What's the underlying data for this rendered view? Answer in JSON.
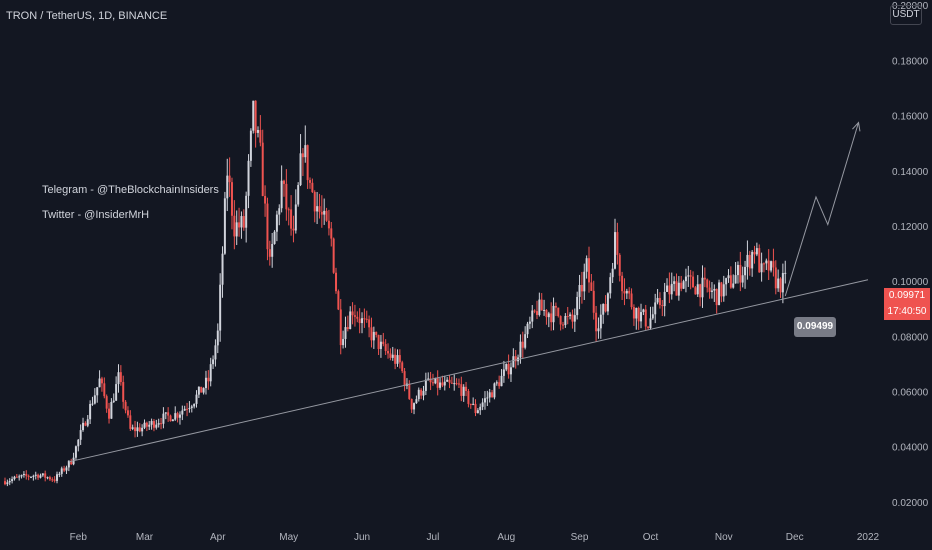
{
  "header": {
    "title": "TRON / TetherUS, 1D, BINANCE"
  },
  "annotations": {
    "telegram": "Telegram - @TheBlockchainInsiders",
    "twitter": "Twitter - @InsiderMrH"
  },
  "price_axis": {
    "currency": "USDT"
  },
  "last_price": {
    "value": "0.09971",
    "countdown": "17:40:50"
  },
  "target_label": "0.09499",
  "colors": {
    "background": "#131722",
    "up": "#d1d4dc",
    "down": "#ef5350",
    "trendline": "#9598a1",
    "axis_text": "#b2b5be"
  },
  "chart_data": {
    "type": "candlestick",
    "title": "TRON / TetherUS, 1D, BINANCE",
    "x_ticks": [
      "Feb",
      "Mar",
      "Apr",
      "May",
      "Jun",
      "Jul",
      "Aug",
      "Sep",
      "Oct",
      "Nov",
      "Dec",
      "2022"
    ],
    "y_ticks": [
      "0.02000",
      "0.04000",
      "0.06000",
      "0.08000",
      "0.10000",
      "0.12000",
      "0.14000",
      "0.16000",
      "0.18000",
      "0.20000"
    ],
    "ylim": [
      0.0116,
      0.2019
    ],
    "xlim": [
      "2021-01-01",
      "2022-01-01"
    ],
    "grid": false,
    "trendline": {
      "from": [
        "2021-01-28",
        0.0345
      ],
      "to": [
        "2022-01-01",
        0.1005
      ]
    },
    "projection": [
      [
        "2021-11-27",
        0.0946
      ],
      [
        "2021-12-10",
        0.1305
      ],
      [
        "2021-12-15",
        0.1205
      ],
      [
        "2021-12-28",
        0.1575
      ]
    ],
    "closes": [
      [
        "2021-01-01",
        0.0275
      ],
      [
        "2021-01-08",
        0.029
      ],
      [
        "2021-01-15",
        0.0298
      ],
      [
        "2021-01-22",
        0.0282
      ],
      [
        "2021-01-29",
        0.0348
      ],
      [
        "2021-02-05",
        0.052
      ],
      [
        "2021-02-10",
        0.064
      ],
      [
        "2021-02-14",
        0.052
      ],
      [
        "2021-02-18",
        0.065
      ],
      [
        "2021-02-23",
        0.046
      ],
      [
        "2021-03-01",
        0.047
      ],
      [
        "2021-03-08",
        0.05
      ],
      [
        "2021-03-15",
        0.052
      ],
      [
        "2021-03-22",
        0.057
      ],
      [
        "2021-03-28",
        0.064
      ],
      [
        "2021-04-01",
        0.081
      ],
      [
        "2021-04-05",
        0.14
      ],
      [
        "2021-04-08",
        0.12
      ],
      [
        "2021-04-12",
        0.12
      ],
      [
        "2021-04-16",
        0.16
      ],
      [
        "2021-04-19",
        0.145
      ],
      [
        "2021-04-23",
        0.105
      ],
      [
        "2021-04-28",
        0.135
      ],
      [
        "2021-05-03",
        0.115
      ],
      [
        "2021-05-07",
        0.15
      ],
      [
        "2021-05-10",
        0.135
      ],
      [
        "2021-05-14",
        0.125
      ],
      [
        "2021-05-19",
        0.115
      ],
      [
        "2021-05-23",
        0.08
      ],
      [
        "2021-05-28",
        0.09
      ],
      [
        "2021-06-03",
        0.083
      ],
      [
        "2021-06-10",
        0.075
      ],
      [
        "2021-06-17",
        0.07
      ],
      [
        "2021-06-22",
        0.055
      ],
      [
        "2021-06-28",
        0.063
      ],
      [
        "2021-07-05",
        0.062
      ],
      [
        "2021-07-12",
        0.062
      ],
      [
        "2021-07-19",
        0.053
      ],
      [
        "2021-07-26",
        0.06
      ],
      [
        "2021-08-03",
        0.07
      ],
      [
        "2021-08-08",
        0.078
      ],
      [
        "2021-08-14",
        0.09
      ],
      [
        "2021-08-22",
        0.088
      ],
      [
        "2021-08-29",
        0.085
      ],
      [
        "2021-09-04",
        0.105
      ],
      [
        "2021-09-08",
        0.085
      ],
      [
        "2021-09-12",
        0.09
      ],
      [
        "2021-09-16",
        0.115
      ],
      [
        "2021-09-19",
        0.1
      ],
      [
        "2021-09-24",
        0.09
      ],
      [
        "2021-09-30",
        0.085
      ],
      [
        "2021-10-07",
        0.095
      ],
      [
        "2021-10-14",
        0.1
      ],
      [
        "2021-10-22",
        0.098
      ],
      [
        "2021-10-29",
        0.095
      ],
      [
        "2021-11-04",
        0.1
      ],
      [
        "2021-11-10",
        0.105
      ],
      [
        "2021-11-14",
        0.112
      ],
      [
        "2021-11-17",
        0.103
      ],
      [
        "2021-11-20",
        0.105
      ],
      [
        "2021-11-24",
        0.099
      ],
      [
        "2021-11-27",
        0.0997
      ]
    ]
  }
}
